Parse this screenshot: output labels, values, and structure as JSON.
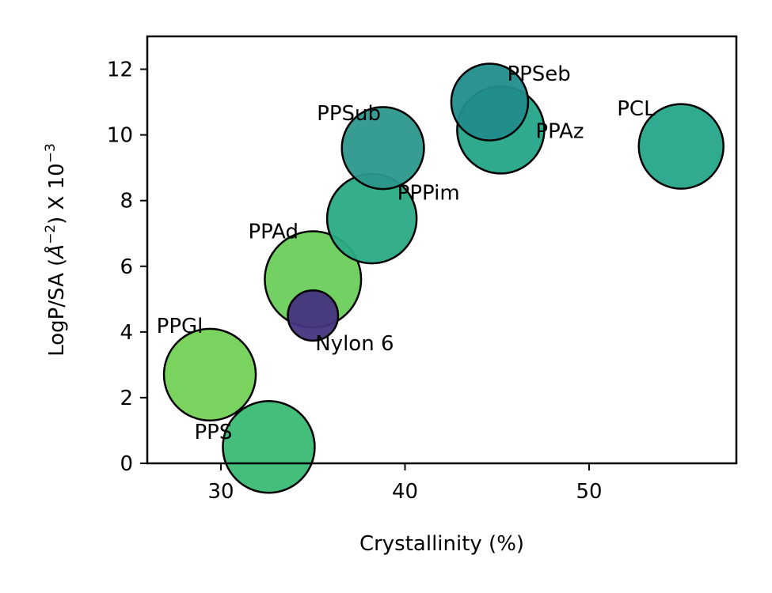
{
  "chart_data": {
    "type": "scatter",
    "xlabel": "Crystallinity (%)",
    "ylabel_main": "LogP/SA (",
    "ylabel_unit": "Å",
    "ylabel_unit_exp": "−2",
    "ylabel_tail": ")  X 10",
    "ylabel_exp": "−3",
    "xlim": [
      26,
      58
    ],
    "ylim": [
      0,
      13
    ],
    "xticks": [
      30,
      40,
      50
    ],
    "yticks": [
      0,
      2,
      4,
      6,
      8,
      10,
      12
    ],
    "grid": false,
    "points": [
      {
        "label": "PPGl",
        "x": 29.4,
        "y": 2.7,
        "size": 1,
        "color": "#73d056"
      },
      {
        "label": "PPS",
        "x": 32.6,
        "y": 0.5,
        "size": 1,
        "color": "#3bbb75"
      },
      {
        "label": "PPAd",
        "x": 35.0,
        "y": 5.6,
        "size": 1.1,
        "color": "#6ccd5a"
      },
      {
        "label": "Nylon 6",
        "x": 35.0,
        "y": 4.5,
        "size": 0.3,
        "color": "#46337e"
      },
      {
        "label": "PPPim",
        "x": 38.2,
        "y": 7.45,
        "size": 0.95,
        "color": "#2aab85"
      },
      {
        "label": "PPSub",
        "x": 38.8,
        "y": 9.6,
        "size": 0.8,
        "color": "#2c978b"
      },
      {
        "label": "PPAz",
        "x": 45.2,
        "y": 10.15,
        "size": 0.9,
        "color": "#25a588"
      },
      {
        "label": "PPSeb",
        "x": 44.6,
        "y": 11.0,
        "size": 0.7,
        "color": "#218c8c"
      },
      {
        "label": "PCL",
        "x": 55.0,
        "y": 9.65,
        "size": 0.85,
        "color": "#25a689"
      }
    ]
  }
}
